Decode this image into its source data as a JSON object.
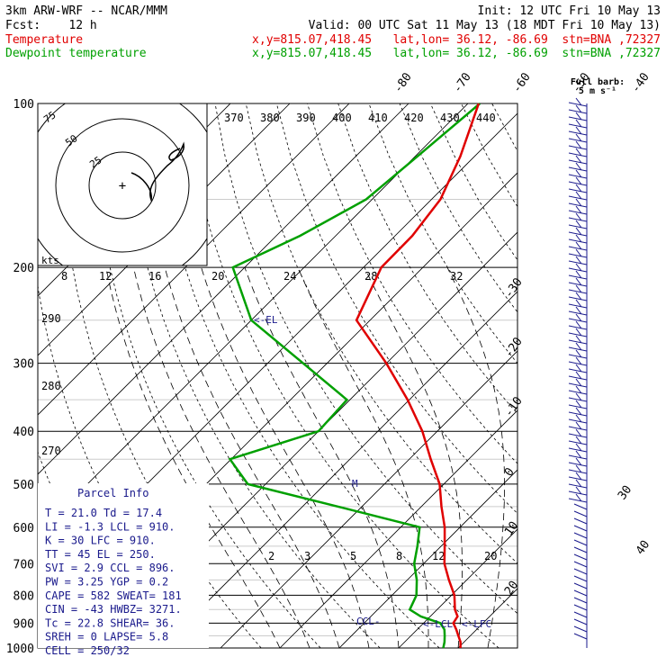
{
  "header": {
    "line1_left": "3km ARW-WRF -- NCAR/MMM",
    "line1_right": "Init: 12 UTC Fri 10 May 13",
    "line2_left": "Fcst:    12 h",
    "line2_right": "Valid: 00 UTC Sat 11 May 13 (18 MDT Fri 10 May 13)",
    "temp_label": "Temperature",
    "temp_info": "x,y=815.07,418.45   lat,lon= 36.12, -86.69  stn=BNA ,72327",
    "dew_label": "Dewpoint temperature",
    "dew_info": "x,y=815.07,418.45   lat,lon= 36.12, -86.69  stn=BNA ,72327"
  },
  "hodograph": {
    "ring_labels": [
      "75",
      "50",
      "25"
    ],
    "units": "kts"
  },
  "wind_legend": {
    "line1": "Full barb:",
    "line2": "5 m s⁻¹"
  },
  "parcel_info": {
    "title": "Parcel Info",
    "rows": [
      "T  =    21.0  Td =  17.4",
      "LI =    -1.3  LCL =  910.",
      "K  =      30  LFC =  910.",
      "TT =      45  EL  =  250.",
      "SVI =    2.9  CCL =  896.",
      "PW =    3.25  YGP =   0.2",
      "CAPE =   582  SWEAT=  181",
      "CIN =    -43  HWBZ= 3271.",
      "Tc =    22.8  SHEAR=  36.",
      "SREH =     0  LAPSE=  5.8",
      "CELL = 250/32"
    ]
  },
  "annotations": {
    "el": "<-EL",
    "lcl": "<-LCL",
    "lfc": "<-LFC",
    "ccl": "CCL-",
    "m": "M"
  },
  "chart_data": {
    "type": "line",
    "y_axis": "pressure (hPa), log scale",
    "ylim": [
      1000,
      100
    ],
    "pressure_ticks": [
      100,
      200,
      300,
      400,
      500,
      600,
      700,
      800,
      900,
      1000
    ],
    "temperature_ticks": [
      -80,
      -70,
      -60,
      -50,
      -40,
      -30,
      -20,
      -10,
      0,
      10,
      20,
      30,
      40
    ],
    "theta_e_labels": [
      370,
      380,
      390,
      400,
      410,
      420,
      430,
      440
    ],
    "thetae_labels_left": [
      290,
      280,
      270
    ],
    "mixing_ratio_labels_top": [
      8,
      12,
      16,
      20,
      24,
      28,
      32
    ],
    "mixing_ratio_labels_bottom": [
      2,
      3,
      5,
      8,
      12,
      20
    ],
    "series": [
      {
        "name": "Temperature",
        "color": "#e00000",
        "pressure": [
          1000,
          975,
          950,
          925,
          900,
          875,
          850,
          800,
          750,
          700,
          650,
          600,
          550,
          500,
          450,
          400,
          350,
          300,
          250,
          200,
          175,
          150,
          125,
          100
        ],
        "temperature": [
          20.4,
          19.4,
          18.0,
          16.6,
          15.0,
          14.6,
          13.0,
          10.5,
          7.0,
          3.5,
          0.6,
          -2.6,
          -6.6,
          -10.7,
          -16.4,
          -22.5,
          -30.3,
          -40.0,
          -52.3,
          -57.0,
          -57.1,
          -58.5,
          -62.4,
          -68.2
        ]
      },
      {
        "name": "Dewpoint temperature",
        "color": "#00a000",
        "pressure": [
          1000,
          975,
          950,
          925,
          900,
          875,
          850,
          800,
          750,
          700,
          650,
          600,
          550,
          500,
          450,
          400,
          350,
          300,
          250,
          200,
          175,
          150,
          125,
          100
        ],
        "temperature": [
          17.5,
          16.7,
          15.7,
          14.6,
          12.8,
          8.4,
          5.4,
          4.1,
          1.6,
          -1.6,
          -4.0,
          -6.8,
          -24.0,
          -43.0,
          -50.2,
          -40.0,
          -40.5,
          -54.0,
          -70.0,
          -82.0,
          -76.0,
          -71.0,
          -69.6,
          -68.0
        ]
      }
    ]
  }
}
